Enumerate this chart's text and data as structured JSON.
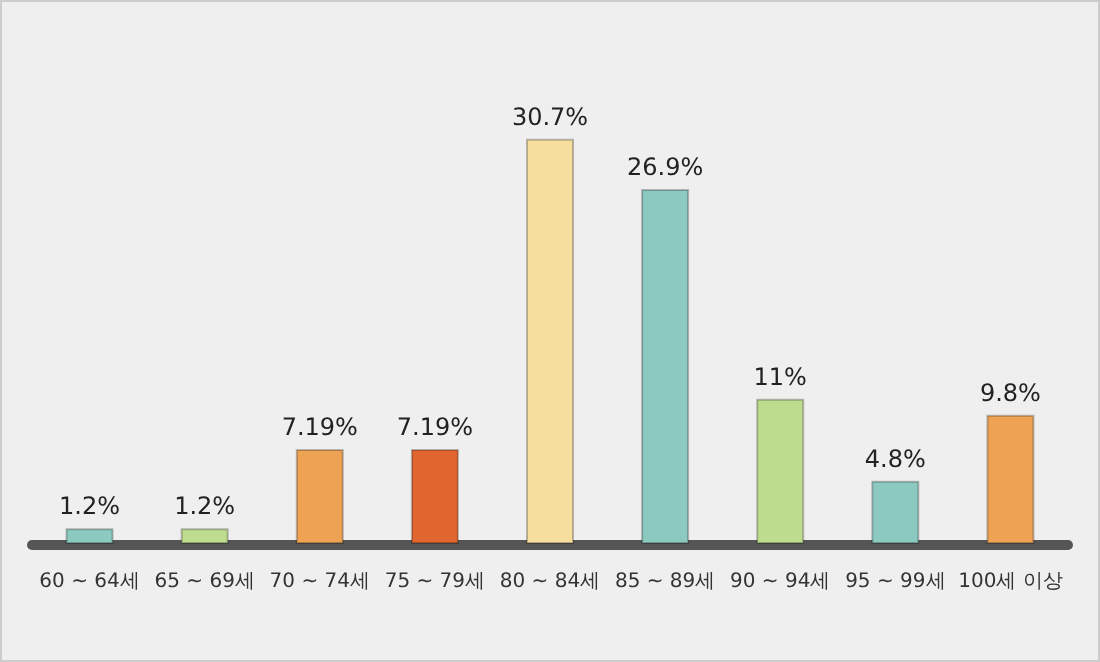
{
  "chart_data": {
    "type": "bar",
    "categories": [
      "60 ~ 64세",
      "65 ~ 69세",
      "70 ~ 74세",
      "75 ~ 79세",
      "80 ~ 84세",
      "85 ~ 89세",
      "90 ~ 94세",
      "95 ~ 99세",
      "100세 이상"
    ],
    "values": [
      1.2,
      1.2,
      7.19,
      7.19,
      30.7,
      26.9,
      11,
      4.8,
      9.8
    ],
    "value_labels": [
      "1.2%",
      "1.2%",
      "7.19%",
      "7.19%",
      "30.7%",
      "26.9%",
      "11%",
      "4.8%",
      "9.8%"
    ],
    "colors": [
      "#8cc9c0",
      "#bedc8e",
      "#eea254",
      "#e0652f",
      "#f6df9e",
      "#8cc9c0",
      "#bedc8e",
      "#8cc9c0",
      "#eea254"
    ]
  }
}
